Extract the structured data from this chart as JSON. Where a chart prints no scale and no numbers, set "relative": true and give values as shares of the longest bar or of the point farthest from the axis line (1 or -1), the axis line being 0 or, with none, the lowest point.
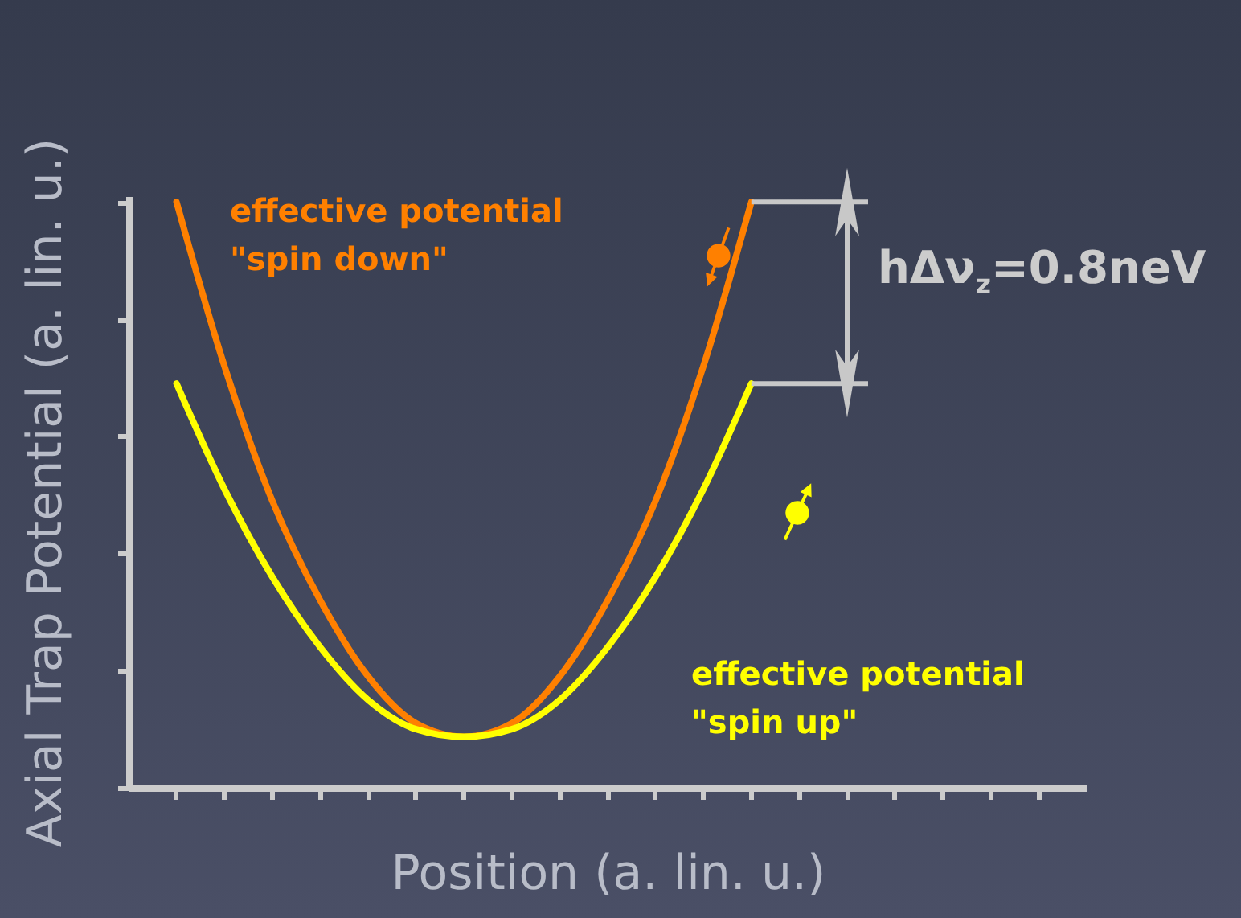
{
  "chart_data": {
    "type": "line",
    "relative": true,
    "xlabel": "Position (a. lin. u.)",
    "ylabel": "Axial Trap Potential (a. lin. u.)",
    "categories": [
      null,
      null,
      null,
      null,
      null,
      null,
      null,
      null,
      null,
      null,
      null,
      null,
      null,
      null,
      null,
      null,
      null,
      null,
      null
    ],
    "series": [
      {
        "name": "effective potential\n\"spin down\"",
        "color": "#ff8000",
        "values": [
          1,
          0.72,
          0.49,
          0.32,
          0.19,
          0.11,
          0.087,
          0.11,
          0.19,
          0.32,
          0.49,
          0.72,
          1,
          null,
          null,
          null,
          null,
          null,
          null
        ]
      },
      {
        "name": "effective potential\n\"spin up\"",
        "color": "#ffff00",
        "values": [
          0.69,
          0.51,
          0.36,
          0.24,
          0.15,
          0.1,
          0.087,
          0.1,
          0.15,
          0.24,
          0.36,
          0.51,
          0.69,
          null,
          null,
          null,
          null,
          null,
          null
        ]
      }
    ],
    "annotations": [
      "hΔν$_{z}$=0.8neV"
    ],
    "legend": false,
    "grid": false,
    "tick_labels": false,
    "marker": "none",
    "line_style": "solid"
  }
}
